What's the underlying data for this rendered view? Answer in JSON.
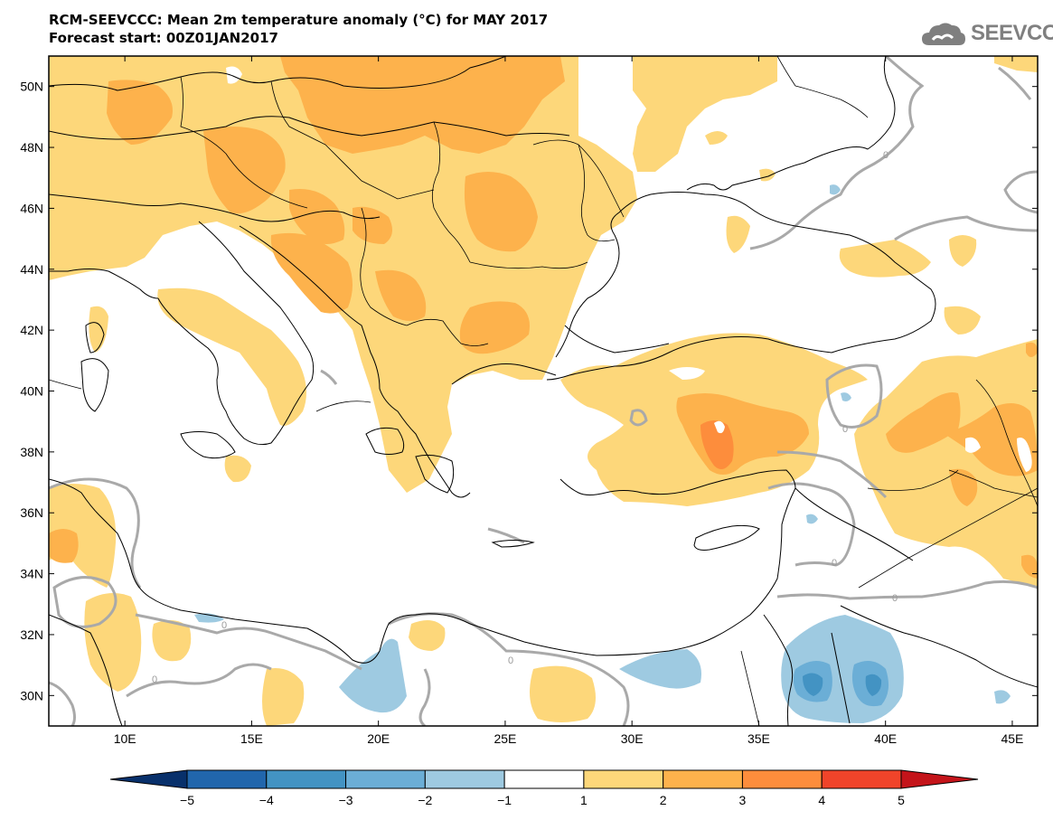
{
  "title": {
    "line1": "RCM-SEEVCCC: Mean 2m temperature anomaly (°C) for MAY 2017",
    "line2": "Forecast start: 00Z01JAN2017"
  },
  "logo": {
    "icon": "cloud-icon",
    "text": "SEEVCCC"
  },
  "map": {
    "lon_range": [
      7,
      46
    ],
    "lat_range": [
      29,
      51
    ],
    "lat_ticks": [
      "50N",
      "48N",
      "46N",
      "44N",
      "42N",
      "40N",
      "38N",
      "36N",
      "34N",
      "32N",
      "30N"
    ],
    "lon_ticks": [
      "10E",
      "15E",
      "20E",
      "25E",
      "30E",
      "35E",
      "40E",
      "45E"
    ],
    "contour_label": "0",
    "colors": {
      "land_border": "#000000",
      "contour_zero": "#a9a9a9"
    }
  },
  "colorbar": {
    "labels": [
      "−5",
      "−4",
      "−3",
      "−2",
      "−1",
      "1",
      "2",
      "3",
      "4",
      "5"
    ],
    "colors": [
      "#08306b",
      "#2166ac",
      "#4393c3",
      "#6baed6",
      "#9ecae1",
      "#ffffff",
      "#fdd77a",
      "#fdb24c",
      "#fd8d3c",
      "#f0442a",
      "#c4141a"
    ]
  }
}
